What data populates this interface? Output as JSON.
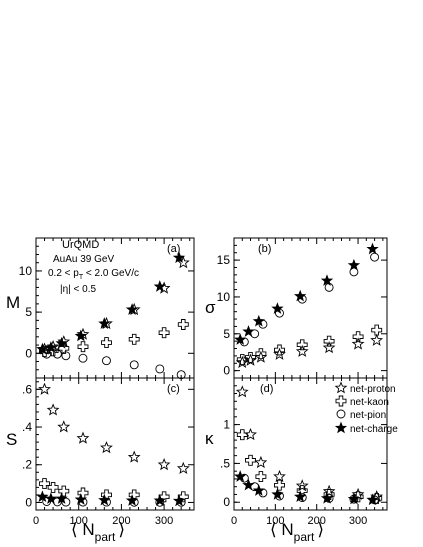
{
  "figure": {
    "annotations_a": [
      "UrQMD",
      "AuAu 39 GeV",
      "0.2 < p",
      "T",
      " < 2.0 GeV/c",
      "|η| < 0.5"
    ],
    "xlabel_main": "⟨ N",
    "xlabel_sub": "part",
    "xlabel_close": "⟩"
  },
  "legend": [
    {
      "label": "net-proton",
      "marker": "open-star"
    },
    {
      "label": "net-kaon",
      "marker": "open-cross"
    },
    {
      "label": "net-pion",
      "marker": "open-circle"
    },
    {
      "label": "net-charge",
      "marker": "filled-star"
    }
  ],
  "chart_data": [
    {
      "type": "scatter",
      "panel": "(a)",
      "ylabel": "M",
      "xlim": [
        0,
        370
      ],
      "ylim": [
        -3,
        14
      ],
      "xticks": [
        0,
        100,
        200,
        300
      ],
      "yticks": [
        0,
        5,
        10
      ],
      "series": [
        {
          "name": "net-proton",
          "x": [
            20,
            40,
            65,
            110,
            165,
            230,
            300,
            345
          ],
          "y": [
            0.5,
            0.8,
            1.4,
            2.3,
            3.6,
            5.3,
            7.9,
            11.0
          ]
        },
        {
          "name": "net-kaon",
          "x": [
            20,
            40,
            65,
            110,
            165,
            230,
            300,
            345
          ],
          "y": [
            0.2,
            0.3,
            0.6,
            0.8,
            1.3,
            1.7,
            2.5,
            3.5
          ]
        },
        {
          "name": "net-pion",
          "x": [
            25,
            50,
            70,
            110,
            165,
            230,
            290,
            340
          ],
          "y": [
            -0.1,
            -0.1,
            -0.3,
            -0.6,
            -0.9,
            -1.4,
            -1.9,
            -2.6
          ]
        },
        {
          "name": "net-charge",
          "x": [
            15,
            35,
            60,
            105,
            160,
            225,
            290,
            335
          ],
          "y": [
            0.5,
            0.7,
            1.2,
            2.1,
            3.6,
            5.3,
            8.1,
            11.6
          ]
        }
      ]
    },
    {
      "type": "scatter",
      "panel": "(b)",
      "ylabel": "σ",
      "xlim": [
        0,
        370
      ],
      "ylim": [
        -1,
        18
      ],
      "xticks": [
        0,
        100,
        200,
        300
      ],
      "yticks": [
        0,
        5,
        10,
        15
      ],
      "series": [
        {
          "name": "net-proton",
          "x": [
            20,
            40,
            65,
            110,
            165,
            230,
            300,
            345
          ],
          "y": [
            1.1,
            1.4,
            1.8,
            2.2,
            2.6,
            3.1,
            3.6,
            4.1
          ]
        },
        {
          "name": "net-kaon",
          "x": [
            20,
            40,
            65,
            110,
            165,
            230,
            300,
            345
          ],
          "y": [
            1.5,
            1.8,
            2.3,
            2.8,
            3.5,
            4.0,
            4.6,
            5.5
          ]
        },
        {
          "name": "net-pion",
          "x": [
            25,
            50,
            70,
            110,
            165,
            230,
            290,
            340
          ],
          "y": [
            3.9,
            5.0,
            6.3,
            7.8,
            9.7,
            11.3,
            13.4,
            15.4
          ]
        },
        {
          "name": "net-charge",
          "x": [
            15,
            35,
            60,
            105,
            160,
            225,
            290,
            335
          ],
          "y": [
            4.2,
            5.3,
            6.7,
            8.4,
            10.1,
            12.2,
            14.3,
            16.5
          ]
        }
      ]
    },
    {
      "type": "scatter",
      "panel": "(c)",
      "ylabel": "S",
      "xlim": [
        0,
        370
      ],
      "ylim": [
        -0.04,
        0.66
      ],
      "xticks": [
        0,
        100,
        200,
        300
      ],
      "yticks": [
        0,
        0.2,
        0.4,
        0.6
      ],
      "series": [
        {
          "name": "net-proton",
          "x": [
            20,
            40,
            65,
            110,
            165,
            230,
            300,
            345
          ],
          "y": [
            0.6,
            0.49,
            0.4,
            0.34,
            0.29,
            0.24,
            0.2,
            0.18
          ]
        },
        {
          "name": "net-kaon",
          "x": [
            20,
            40,
            65,
            110,
            165,
            230,
            300,
            345
          ],
          "y": [
            0.1,
            0.08,
            0.06,
            0.05,
            0.04,
            0.04,
            0.03,
            0.03
          ]
        },
        {
          "name": "net-pion",
          "x": [
            25,
            50,
            70,
            110,
            165,
            230,
            290,
            340
          ],
          "y": [
            0.005,
            0.003,
            0.002,
            0.002,
            0.002,
            0.001,
            0.001,
            0.001
          ]
        },
        {
          "name": "net-charge",
          "x": [
            15,
            35,
            60,
            105,
            160,
            225,
            290,
            335
          ],
          "y": [
            0.03,
            0.02,
            0.02,
            0.015,
            0.012,
            0.01,
            0.01,
            0.008
          ]
        }
      ]
    },
    {
      "type": "scatter",
      "panel": "(d)",
      "ylabel": "κ",
      "xlim": [
        0,
        370
      ],
      "ylim": [
        -0.1,
        1.6
      ],
      "xticks": [
        0,
        100,
        200,
        300
      ],
      "yticks": [
        0,
        0.5,
        1
      ],
      "series": [
        {
          "name": "net-proton",
          "x": [
            20,
            40,
            65,
            110,
            165,
            230,
            300,
            345
          ],
          "y": [
            1.42,
            0.87,
            0.51,
            0.33,
            0.21,
            0.14,
            0.1,
            0.07
          ]
        },
        {
          "name": "net-kaon",
          "x": [
            20,
            40,
            65,
            110,
            165,
            230,
            300,
            345
          ],
          "y": [
            0.87,
            0.54,
            0.33,
            0.22,
            0.15,
            0.1,
            0.07,
            0.05
          ]
        },
        {
          "name": "net-pion",
          "x": [
            25,
            50,
            70,
            110,
            165,
            230,
            290,
            340
          ],
          "y": [
            0.31,
            0.2,
            0.12,
            0.08,
            0.06,
            0.05,
            0.04,
            0.03
          ]
        },
        {
          "name": "net-charge",
          "x": [
            15,
            35,
            60,
            105,
            160,
            225,
            290,
            335
          ],
          "y": [
            0.33,
            0.22,
            0.15,
            0.1,
            0.07,
            0.05,
            0.04,
            0.03
          ]
        }
      ]
    }
  ]
}
